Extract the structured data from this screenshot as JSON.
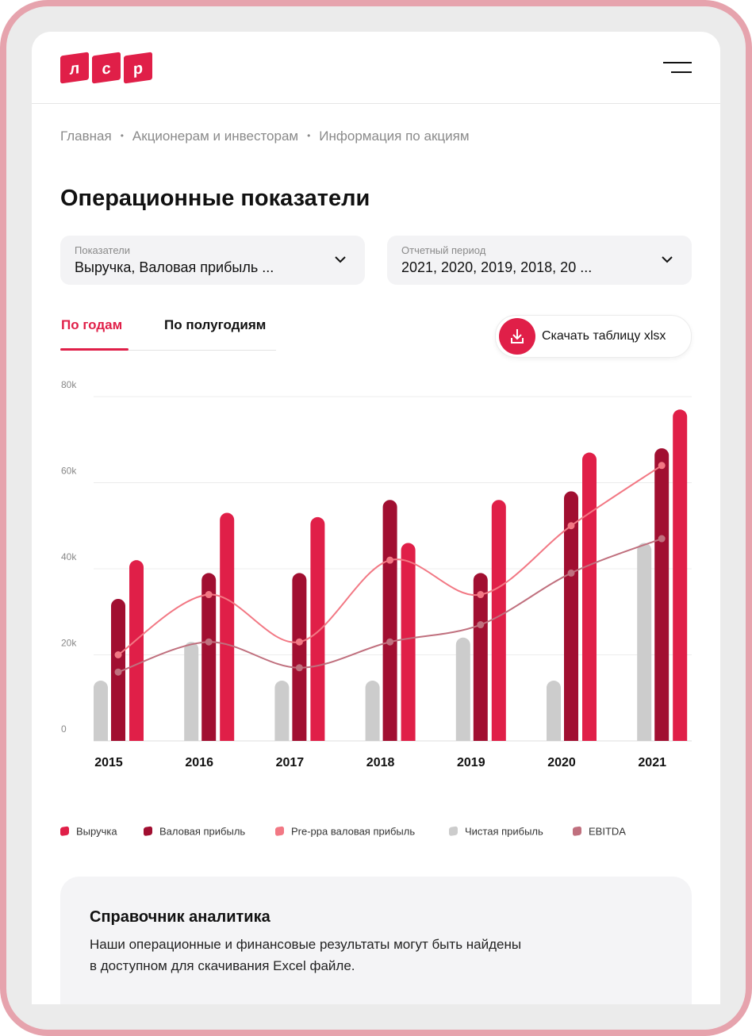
{
  "header": {
    "logo": [
      "л",
      "с",
      "р"
    ]
  },
  "breadcrumbs": [
    "Главная",
    "Акционерам и инвесторам",
    "Информация по акциям"
  ],
  "page_title": "Операционные показатели",
  "filters": [
    {
      "label": "Показатели",
      "value": "Выручка, Валовая прибыль ..."
    },
    {
      "label": "Отчетный период",
      "value": "2021, 2020, 2019, 2018, 20 ..."
    }
  ],
  "tabs": [
    "По годам",
    "По полугодиям"
  ],
  "download_button": "Скачать таблицу xlsx",
  "chart_data": {
    "type": "bar",
    "categories": [
      "2015",
      "2016",
      "2017",
      "2018",
      "2019",
      "2020",
      "2021"
    ],
    "series": [
      {
        "name": "Выручка",
        "type": "bar",
        "color": "#e01f48",
        "values": [
          42000,
          53000,
          52000,
          46000,
          56000,
          67000,
          77000
        ]
      },
      {
        "name": "Валовая прибыль",
        "type": "bar",
        "color": "#a10f31",
        "values": [
          33000,
          39000,
          39000,
          56000,
          39000,
          58000,
          68000
        ]
      },
      {
        "name": "Pre-ppa валовая прибыль",
        "type": "line",
        "color": "#f27884",
        "values": [
          20000,
          34000,
          23000,
          42000,
          34000,
          50000,
          64000
        ]
      },
      {
        "name": "Чистая прибыль",
        "type": "bar",
        "color": "#cccccc",
        "values": [
          14000,
          23000,
          14000,
          14000,
          24000,
          14000,
          46000
        ]
      },
      {
        "name": "EBITDA",
        "type": "line",
        "color": "#c0707e",
        "values": [
          16000,
          23000,
          17000,
          23000,
          27000,
          39000,
          47000
        ]
      }
    ],
    "ylim": [
      0,
      80000
    ],
    "yticks": [
      0,
      {
        "value": 20000,
        "label": "20k"
      },
      {
        "value": 40000,
        "label": "40k"
      },
      {
        "value": 60000,
        "label": "60k"
      },
      {
        "value": 80000,
        "label": "80k"
      }
    ],
    "grid": true
  },
  "info_box": {
    "title": "Справочник аналитика",
    "text": [
      "Наши операционные и финансовые результаты могут быть найдены",
      "в доступном для скачивания Excel файле."
    ]
  }
}
